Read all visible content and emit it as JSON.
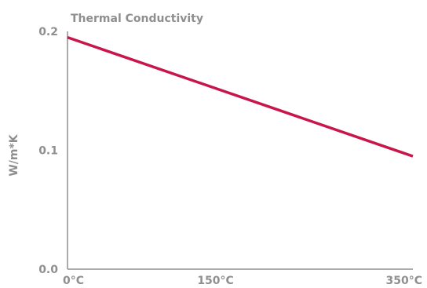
{
  "chart_data": {
    "type": "line",
    "title": "Thermal Conductivity",
    "xlabel": "",
    "ylabel": "W/m*K",
    "x_ticks": [
      "0°C",
      "150°C",
      "350°C"
    ],
    "x_tick_values": [
      0,
      150,
      350
    ],
    "xlim": [
      0,
      350
    ],
    "ylim": [
      0,
      0.2
    ],
    "y_ticks": [
      "0.0",
      "0.1",
      "0.2"
    ],
    "y_tick_values": [
      0,
      0.1,
      0.2
    ],
    "grid": false,
    "series": [
      {
        "x": [
          0,
          350
        ],
        "y": [
          0.195,
          0.095
        ],
        "color": "#c8164b"
      }
    ],
    "axis_color": "#8f8f8f"
  }
}
